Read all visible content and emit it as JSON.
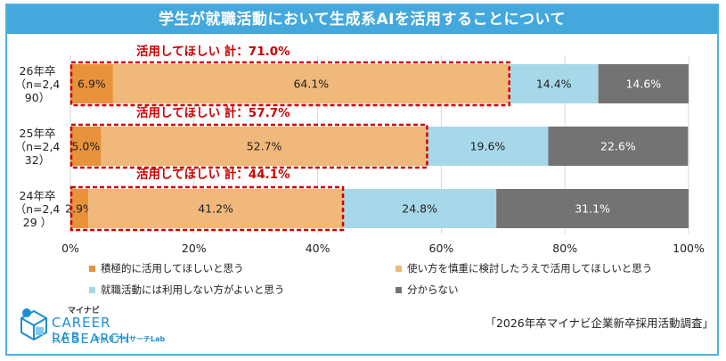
{
  "title": "学生が就職活動において生成系AIを活用することについて",
  "chart_data": {
    "type": "bar",
    "orientation": "horizontal",
    "stacked": true,
    "categories": [
      {
        "lines": [
          "26年卒",
          "（n=2,4",
          "90）"
        ]
      },
      {
        "lines": [
          "25年卒",
          "（n=2,4",
          "32）"
        ]
      },
      {
        "lines": [
          "24年卒",
          "（n=2,4",
          "29 ）"
        ]
      }
    ],
    "series": [
      {
        "name": "積極的に活用してほしいと思う",
        "color": "#e8923c",
        "values": [
          6.9,
          5.0,
          2.9
        ],
        "labels": [
          "6.9%",
          "5.0%",
          "2.9%"
        ]
      },
      {
        "name": "使い方を慎重に検討したうえで活用してほしいと思う",
        "color": "#f0b87a",
        "values": [
          64.1,
          52.7,
          41.2
        ],
        "labels": [
          "64.1%",
          "52.7%",
          "41.2%"
        ]
      },
      {
        "name": "就職活動には利用しない方がよいと思う",
        "color": "#a6d8ea",
        "values": [
          14.4,
          19.6,
          24.8
        ],
        "labels": [
          "14.4%",
          "19.6%",
          "24.8%"
        ]
      },
      {
        "name": "分からない",
        "color": "#737373",
        "values": [
          14.6,
          22.6,
          31.1
        ],
        "labels": [
          "14.6%",
          "22.6%",
          "31.1%"
        ]
      }
    ],
    "annotations": [
      {
        "text": "活用してほしい 計：71.0%",
        "total": 71.0
      },
      {
        "text": "活用してほしい 計：57.7%",
        "total": 57.7
      },
      {
        "text": "活用してほしい 計：44.1%",
        "total": 44.1
      }
    ],
    "xlim": [
      0,
      100
    ],
    "xticks": [
      "0%",
      "20%",
      "40%",
      "60%",
      "80%",
      "100%"
    ],
    "grid": true,
    "legend_position": "bottom"
  },
  "legend_items": [
    {
      "label": "積極的に活用してほしいと思う",
      "color": "#e8923c"
    },
    {
      "label": "使い方を慎重に検討したうえで活用してほしいと思う",
      "color": "#f0b87a"
    },
    {
      "label": "就職活動には利用しない方がよいと思う",
      "color": "#a6d8ea"
    },
    {
      "label": "分からない",
      "color": "#737373"
    }
  ],
  "source": "「2026年卒マイナビ企業新卒採用活動調査」",
  "logo": {
    "small": "マイナビ",
    "main": "CAREER RESEARCH",
    "lab": "LAB",
    "sub": "キャリアリサーチLab"
  },
  "colors": {
    "accent": "#44a8dc",
    "highlight": "#cc0000"
  }
}
